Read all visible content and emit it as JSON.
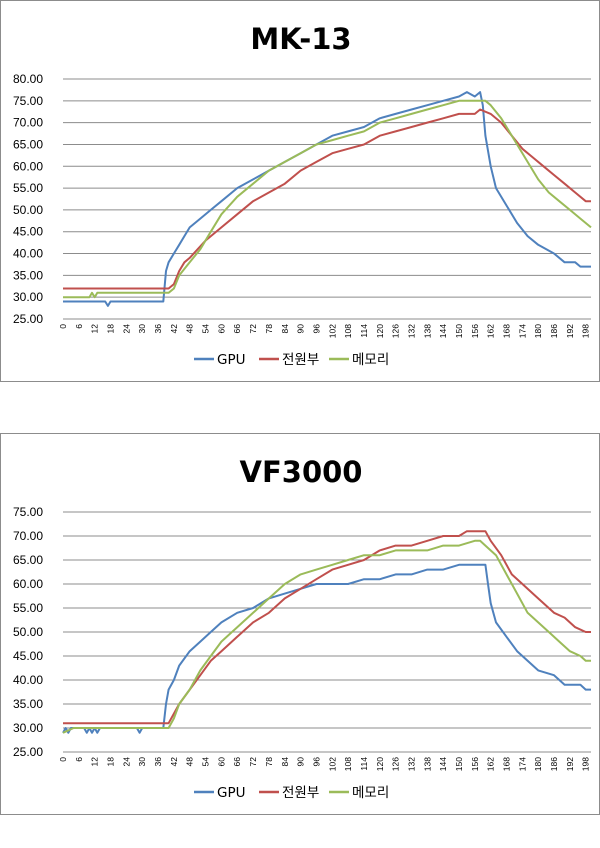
{
  "chart_data": [
    {
      "type": "line",
      "title": "MK-13",
      "xlabel": "",
      "ylabel": "",
      "ylim": [
        25,
        80
      ],
      "yticks": [
        "25.00",
        "30.00",
        "35.00",
        "40.00",
        "45.00",
        "50.00",
        "55.00",
        "60.00",
        "65.00",
        "70.00",
        "75.00",
        "80.00"
      ],
      "xlim": [
        0,
        200
      ],
      "xticks": [
        0,
        6,
        12,
        18,
        24,
        30,
        36,
        42,
        48,
        54,
        60,
        66,
        72,
        78,
        84,
        90,
        96,
        102,
        108,
        114,
        120,
        126,
        132,
        138,
        144,
        150,
        156,
        162,
        168,
        174,
        180,
        186,
        192,
        198
      ],
      "grid": true,
      "legend": "bottom",
      "series": [
        {
          "name": "GPU",
          "color": "#4f81bd",
          "points": [
            [
              0,
              29
            ],
            [
              16,
              29
            ],
            [
              17,
              28
            ],
            [
              18,
              29
            ],
            [
              38,
              29
            ],
            [
              39,
              36
            ],
            [
              40,
              38
            ],
            [
              42,
              40
            ],
            [
              44,
              42
            ],
            [
              46,
              44
            ],
            [
              48,
              46
            ],
            [
              52,
              48
            ],
            [
              56,
              50
            ],
            [
              60,
              52
            ],
            [
              66,
              55
            ],
            [
              72,
              57
            ],
            [
              78,
              59
            ],
            [
              84,
              61
            ],
            [
              90,
              63
            ],
            [
              96,
              65
            ],
            [
              102,
              67
            ],
            [
              108,
              68
            ],
            [
              114,
              69
            ],
            [
              120,
              71
            ],
            [
              126,
              72
            ],
            [
              132,
              73
            ],
            [
              138,
              74
            ],
            [
              144,
              75
            ],
            [
              150,
              76
            ],
            [
              153,
              77
            ],
            [
              156,
              76
            ],
            [
              158,
              77
            ],
            [
              159,
              74
            ],
            [
              160,
              67
            ],
            [
              162,
              60
            ],
            [
              164,
              55
            ],
            [
              168,
              51
            ],
            [
              172,
              47
            ],
            [
              176,
              44
            ],
            [
              180,
              42
            ],
            [
              186,
              40
            ],
            [
              190,
              38
            ],
            [
              194,
              38
            ],
            [
              196,
              37
            ],
            [
              200,
              37
            ]
          ]
        },
        {
          "name": "전원부",
          "color": "#c0504d",
          "points": [
            [
              0,
              32
            ],
            [
              40,
              32
            ],
            [
              42,
              33
            ],
            [
              44,
              36
            ],
            [
              46,
              38
            ],
            [
              48,
              39
            ],
            [
              54,
              43
            ],
            [
              60,
              46
            ],
            [
              66,
              49
            ],
            [
              72,
              52
            ],
            [
              78,
              54
            ],
            [
              84,
              56
            ],
            [
              90,
              59
            ],
            [
              96,
              61
            ],
            [
              102,
              63
            ],
            [
              108,
              64
            ],
            [
              114,
              65
            ],
            [
              120,
              67
            ],
            [
              126,
              68
            ],
            [
              132,
              69
            ],
            [
              138,
              70
            ],
            [
              144,
              71
            ],
            [
              150,
              72
            ],
            [
              156,
              72
            ],
            [
              158,
              73
            ],
            [
              162,
              72
            ],
            [
              166,
              70
            ],
            [
              170,
              67
            ],
            [
              174,
              64
            ],
            [
              178,
              62
            ],
            [
              182,
              60
            ],
            [
              186,
              58
            ],
            [
              190,
              56
            ],
            [
              194,
              54
            ],
            [
              198,
              52
            ],
            [
              200,
              52
            ]
          ]
        },
        {
          "name": "메모리",
          "color": "#9bbb59",
          "points": [
            [
              0,
              30
            ],
            [
              10,
              30
            ],
            [
              11,
              31
            ],
            [
              12,
              30
            ],
            [
              13,
              31
            ],
            [
              40,
              31
            ],
            [
              42,
              32
            ],
            [
              44,
              35
            ],
            [
              48,
              38
            ],
            [
              52,
              41
            ],
            [
              56,
              45
            ],
            [
              60,
              49
            ],
            [
              66,
              53
            ],
            [
              72,
              56
            ],
            [
              78,
              59
            ],
            [
              84,
              61
            ],
            [
              90,
              63
            ],
            [
              96,
              65
            ],
            [
              102,
              66
            ],
            [
              108,
              67
            ],
            [
              114,
              68
            ],
            [
              120,
              70
            ],
            [
              126,
              71
            ],
            [
              132,
              72
            ],
            [
              138,
              73
            ],
            [
              144,
              74
            ],
            [
              150,
              75
            ],
            [
              156,
              75
            ],
            [
              160,
              75
            ],
            [
              162,
              74
            ],
            [
              166,
              71
            ],
            [
              168,
              69
            ],
            [
              172,
              65
            ],
            [
              176,
              61
            ],
            [
              180,
              57
            ],
            [
              184,
              54
            ],
            [
              188,
              52
            ],
            [
              192,
              50
            ],
            [
              196,
              48
            ],
            [
              200,
              46
            ]
          ]
        }
      ]
    },
    {
      "type": "line",
      "title": "VF3000",
      "xlabel": "",
      "ylabel": "",
      "ylim": [
        25,
        75
      ],
      "yticks": [
        "25.00",
        "30.00",
        "35.00",
        "40.00",
        "45.00",
        "50.00",
        "55.00",
        "60.00",
        "65.00",
        "70.00",
        "75.00"
      ],
      "xlim": [
        0,
        200
      ],
      "xticks": [
        0,
        6,
        12,
        18,
        24,
        30,
        36,
        42,
        48,
        54,
        60,
        66,
        72,
        78,
        84,
        90,
        96,
        102,
        108,
        114,
        120,
        126,
        132,
        138,
        144,
        150,
        156,
        162,
        168,
        174,
        180,
        186,
        192,
        198
      ],
      "grid": true,
      "legend": "bottom",
      "series": [
        {
          "name": "GPU",
          "color": "#4f81bd",
          "points": [
            [
              0,
              29
            ],
            [
              1,
              30
            ],
            [
              2,
              29
            ],
            [
              3,
              30
            ],
            [
              8,
              30
            ],
            [
              9,
              29
            ],
            [
              10,
              30
            ],
            [
              11,
              29
            ],
            [
              12,
              30
            ],
            [
              13,
              29
            ],
            [
              14,
              30
            ],
            [
              28,
              30
            ],
            [
              29,
              29
            ],
            [
              30,
              30
            ],
            [
              38,
              30
            ],
            [
              39,
              35
            ],
            [
              40,
              38
            ],
            [
              42,
              40
            ],
            [
              44,
              43
            ],
            [
              48,
              46
            ],
            [
              52,
              48
            ],
            [
              56,
              50
            ],
            [
              60,
              52
            ],
            [
              66,
              54
            ],
            [
              72,
              55
            ],
            [
              78,
              57
            ],
            [
              84,
              58
            ],
            [
              90,
              59
            ],
            [
              96,
              60
            ],
            [
              102,
              60
            ],
            [
              108,
              60
            ],
            [
              114,
              61
            ],
            [
              120,
              61
            ],
            [
              126,
              62
            ],
            [
              132,
              62
            ],
            [
              138,
              63
            ],
            [
              144,
              63
            ],
            [
              150,
              64
            ],
            [
              156,
              64
            ],
            [
              160,
              64
            ],
            [
              161,
              60
            ],
            [
              162,
              56
            ],
            [
              164,
              52
            ],
            [
              168,
              49
            ],
            [
              172,
              46
            ],
            [
              176,
              44
            ],
            [
              180,
              42
            ],
            [
              186,
              41
            ],
            [
              190,
              39
            ],
            [
              196,
              39
            ],
            [
              198,
              38
            ],
            [
              200,
              38
            ]
          ]
        },
        {
          "name": "전원부",
          "color": "#c0504d",
          "points": [
            [
              0,
              31
            ],
            [
              38,
              31
            ],
            [
              40,
              31
            ],
            [
              42,
              33
            ],
            [
              44,
              35
            ],
            [
              48,
              38
            ],
            [
              52,
              41
            ],
            [
              56,
              44
            ],
            [
              60,
              46
            ],
            [
              66,
              49
            ],
            [
              72,
              52
            ],
            [
              78,
              54
            ],
            [
              84,
              57
            ],
            [
              90,
              59
            ],
            [
              96,
              61
            ],
            [
              102,
              63
            ],
            [
              108,
              64
            ],
            [
              114,
              65
            ],
            [
              120,
              67
            ],
            [
              126,
              68
            ],
            [
              132,
              68
            ],
            [
              138,
              69
            ],
            [
              144,
              70
            ],
            [
              150,
              70
            ],
            [
              153,
              71
            ],
            [
              156,
              71
            ],
            [
              160,
              71
            ],
            [
              162,
              69
            ],
            [
              166,
              66
            ],
            [
              170,
              62
            ],
            [
              174,
              60
            ],
            [
              178,
              58
            ],
            [
              182,
              56
            ],
            [
              186,
              54
            ],
            [
              190,
              53
            ],
            [
              194,
              51
            ],
            [
              198,
              50
            ],
            [
              200,
              50
            ]
          ]
        },
        {
          "name": "메모리",
          "color": "#9bbb59",
          "points": [
            [
              0,
              29
            ],
            [
              4,
              30
            ],
            [
              40,
              30
            ],
            [
              42,
              32
            ],
            [
              44,
              35
            ],
            [
              48,
              38
            ],
            [
              52,
              42
            ],
            [
              56,
              45
            ],
            [
              60,
              48
            ],
            [
              66,
              51
            ],
            [
              72,
              54
            ],
            [
              78,
              57
            ],
            [
              84,
              60
            ],
            [
              90,
              62
            ],
            [
              96,
              63
            ],
            [
              102,
              64
            ],
            [
              108,
              65
            ],
            [
              114,
              66
            ],
            [
              120,
              66
            ],
            [
              126,
              67
            ],
            [
              132,
              67
            ],
            [
              138,
              67
            ],
            [
              144,
              68
            ],
            [
              150,
              68
            ],
            [
              156,
              69
            ],
            [
              158,
              69
            ],
            [
              160,
              68
            ],
            [
              164,
              66
            ],
            [
              168,
              62
            ],
            [
              172,
              58
            ],
            [
              176,
              54
            ],
            [
              180,
              52
            ],
            [
              184,
              50
            ],
            [
              188,
              48
            ],
            [
              192,
              46
            ],
            [
              196,
              45
            ],
            [
              198,
              44
            ],
            [
              200,
              44
            ]
          ]
        }
      ]
    }
  ]
}
